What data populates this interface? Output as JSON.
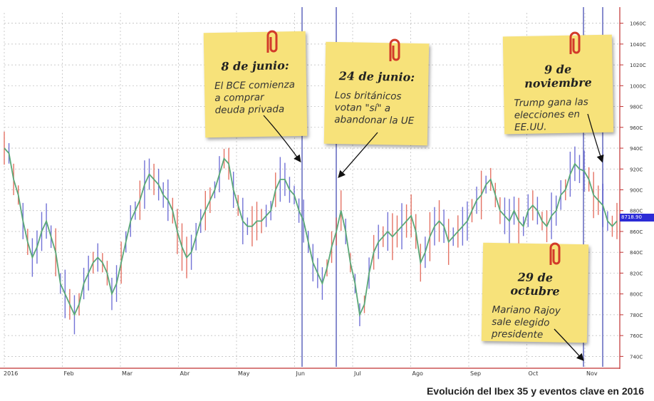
{
  "caption": "Evolución del Ibex 35 y eventos clave en 2016",
  "chart_data": {
    "type": "line",
    "title": "",
    "series": [
      {
        "name": "",
        "color": "#5aa878",
        "values": [
          9400,
          9350,
          9100,
          8950,
          8700,
          8500,
          8350,
          8450,
          8600,
          8700,
          8550,
          8400,
          8100,
          8000,
          7900,
          7800,
          7900,
          8100,
          8200,
          8300,
          8350,
          8300,
          8200,
          8000,
          8100,
          8300,
          8500,
          8700,
          8800,
          8900,
          9050,
          9150,
          9100,
          9050,
          8950,
          8900,
          8800,
          8600,
          8450,
          8350,
          8400,
          8550,
          8700,
          8800,
          8900,
          9000,
          9150,
          9300,
          9250,
          9000,
          8850,
          8700,
          8650,
          8650,
          8700,
          8700,
          8750,
          8800,
          9000,
          9100,
          9100,
          9000,
          8950,
          8800,
          8700,
          8500,
          8300,
          8200,
          8100,
          8250,
          8450,
          8600,
          8800,
          8600,
          8300,
          8100,
          7800,
          7900,
          8200,
          8400,
          8500,
          8550,
          8600,
          8550,
          8600,
          8650,
          8700,
          8750,
          8600,
          8300,
          8400,
          8550,
          8650,
          8700,
          8650,
          8500,
          8550,
          8600,
          8650,
          8700,
          8800,
          8900,
          8950,
          9050,
          9100,
          8950,
          8800,
          8750,
          8700,
          8800,
          8700,
          8650,
          8800,
          8850,
          8800,
          8700,
          8650,
          8750,
          8800,
          8950,
          9000,
          9150,
          9250,
          9200,
          9180,
          9100,
          8950,
          8900,
          8850,
          8700,
          8650,
          8700
        ]
      }
    ],
    "x_labels": [
      "2016",
      "Feb",
      "Mar",
      "Abr",
      "May",
      "Jun",
      "Jul",
      "Ago",
      "Sep",
      "Oct",
      "Nov"
    ],
    "y_ticks": [
      7400,
      7600,
      7800,
      8000,
      8200,
      8400,
      8600,
      8800,
      9000,
      9200,
      9400,
      9600,
      9800,
      10000,
      10200,
      10400,
      10600
    ],
    "y_tick_labels": [
      "740C",
      "760C",
      "780C",
      "800C",
      "820C",
      "840C",
      "860C",
      "880C",
      "900C",
      "920C",
      "940C",
      "960C",
      "980C",
      "1000C",
      "1020C",
      "1040C",
      "1060C"
    ],
    "ylim": [
      7300,
      10700
    ],
    "current_value_label": "8718.90",
    "event_lines": [
      {
        "label": "8 de junio"
      },
      {
        "label": "24 de junio"
      },
      {
        "label": "29 de octubre"
      },
      {
        "label": "9 de noviembre"
      }
    ],
    "grid": true
  },
  "notes": [
    {
      "date": "8 de junio:",
      "text": "El BCE comienza a comprar deuda privada"
    },
    {
      "date": "24 de junio:",
      "text": "Los británicos votan \"sí\" a abandonar la UE"
    },
    {
      "date": "9 de noviembre",
      "text": "Trump gana las elecciones en EE.UU."
    },
    {
      "date": "29 de octubre",
      "text": "Mariano Rajoy sale elegido presidente"
    }
  ],
  "colors": {
    "note": "#f7e27a",
    "line": "#5aa878",
    "event_line": "#7a7fc8",
    "price_tag": "#2b2bd6",
    "axis_red": "#c03030"
  }
}
